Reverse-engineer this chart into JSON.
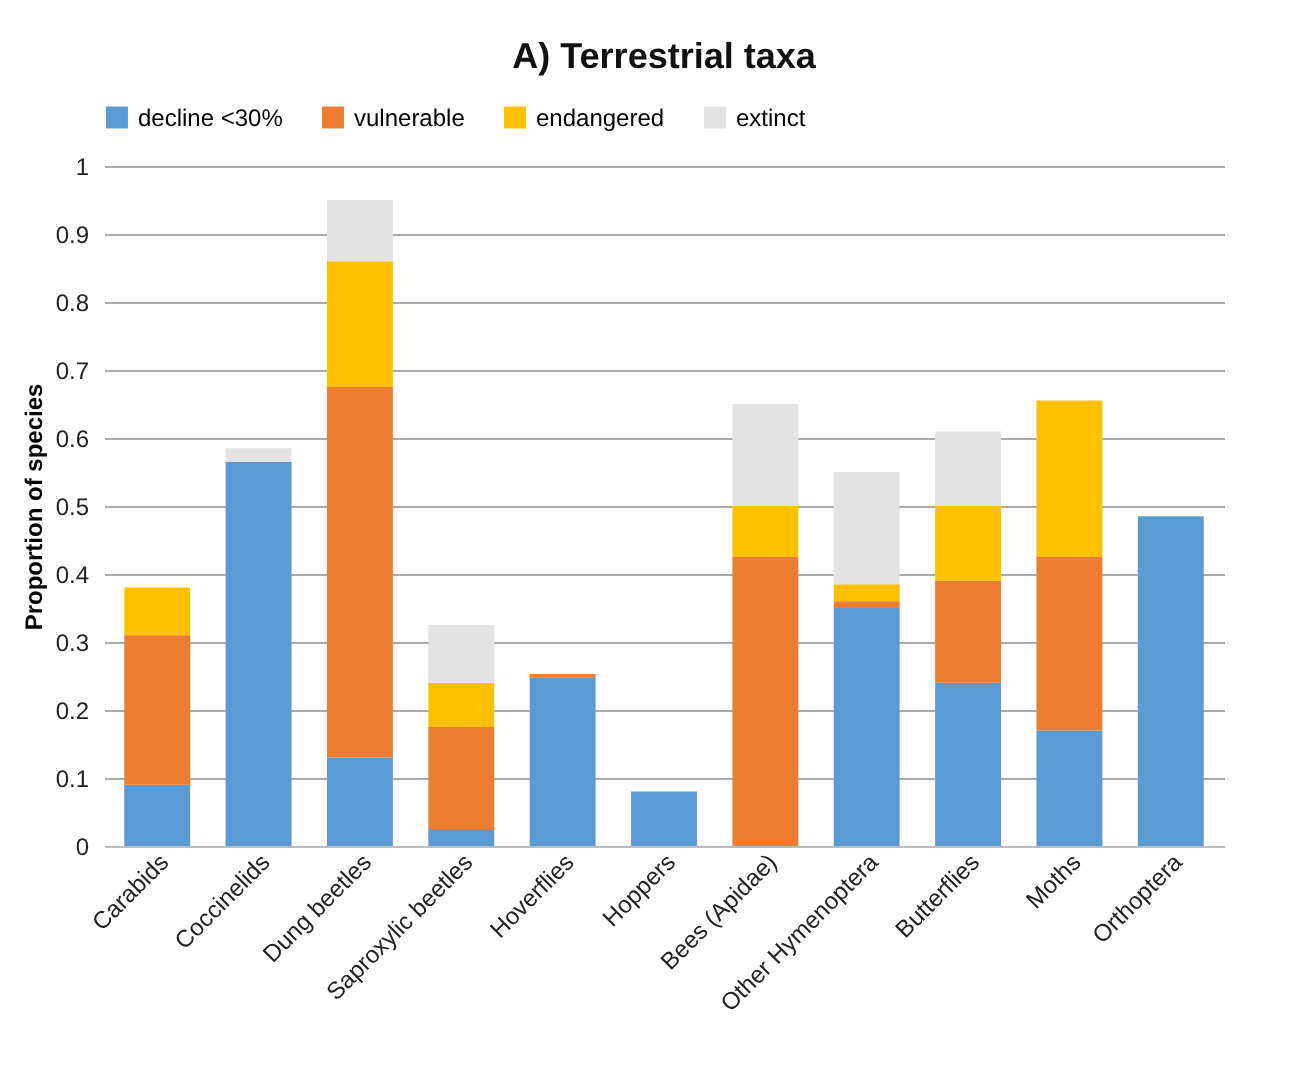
{
  "chart_data": {
    "type": "bar",
    "title": "A) Terrestrial taxa",
    "ylabel": "Proportion of species",
    "stacked": true,
    "categories": [
      "Carabids",
      "Coccinelids",
      "Dung beetles",
      "Saproxylic beetles",
      "Hoverflies",
      "Hoppers",
      "Bees (Apidae)",
      "Other Hymenoptera",
      "Butterflies",
      "Moths",
      "Orthoptera"
    ],
    "series": [
      {
        "name": "decline <30%",
        "color": "#5b9bd5",
        "values": [
          0.09,
          0.565,
          0.13,
          0.025,
          0.248,
          0.08,
          0,
          0.35,
          0.24,
          0.17,
          0.485
        ]
      },
      {
        "name": "vulnerable",
        "color": "#ed7d31",
        "values": [
          0.22,
          0,
          0.545,
          0.15,
          0.005,
          0,
          0.425,
          0.01,
          0.15,
          0.255,
          0
        ]
      },
      {
        "name": "endangered",
        "color": "#ffc000",
        "values": [
          0.07,
          0,
          0.185,
          0.065,
          0,
          0,
          0.075,
          0.025,
          0.11,
          0.23,
          0
        ]
      },
      {
        "name": "extinct",
        "color": "#e3e3e3",
        "values": [
          0,
          0.02,
          0.09,
          0.085,
          0,
          0,
          0.15,
          0.165,
          0.11,
          0,
          0
        ]
      }
    ],
    "ylim": [
      0,
      1
    ],
    "yticks": [
      0,
      0.1,
      0.2,
      0.3,
      0.4,
      0.5,
      0.6,
      0.7,
      0.8,
      0.9,
      1
    ],
    "grid": "y",
    "legend": "top"
  }
}
